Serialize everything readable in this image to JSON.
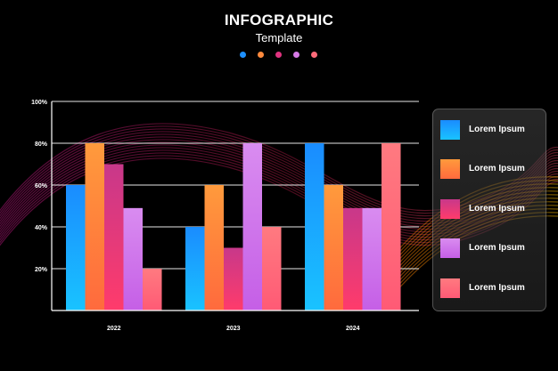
{
  "header": {
    "title": "INFOGRAPHIC",
    "subtitle": "Template"
  },
  "palette": {
    "background": "#000000",
    "dots": [
      "#1e90ff",
      "#ff8a3d",
      "#e0337f",
      "#d67ae6",
      "#ff6b7a"
    ]
  },
  "chart_data": {
    "type": "bar",
    "title": "INFOGRAPHIC Template",
    "categories": [
      "2022",
      "2023",
      "2024"
    ],
    "ylim": [
      0,
      100
    ],
    "yticks": [
      20,
      40,
      60,
      80,
      100
    ],
    "ytick_labels": [
      "20%",
      "40%",
      "60%",
      "80%",
      "100%"
    ],
    "grid": true,
    "legend_position": "right",
    "series": [
      {
        "name": "Lorem Ipsum",
        "color_top": "#1a8cff",
        "color_bottom": "#19c3ff",
        "values": [
          60,
          40,
          80
        ]
      },
      {
        "name": "Lorem Ipsum",
        "color_top": "#ff9a3c",
        "color_bottom": "#ff6a3d",
        "values": [
          80,
          60,
          60
        ]
      },
      {
        "name": "Lorem Ipsum",
        "color_top": "#c8388a",
        "color_bottom": "#ff3b6b",
        "values": [
          70,
          30,
          49
        ]
      },
      {
        "name": "Lorem Ipsum",
        "color_top": "#d98cf0",
        "color_bottom": "#c55fe6",
        "values": [
          49,
          80,
          49
        ]
      },
      {
        "name": "Lorem Ipsum",
        "color_top": "#ff7a80",
        "color_bottom": "#ff5a75",
        "values": [
          20,
          40,
          80
        ]
      }
    ]
  }
}
